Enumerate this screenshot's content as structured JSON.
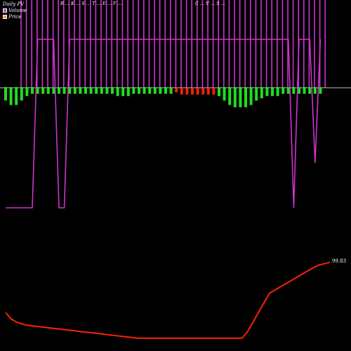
{
  "legend": {
    "title": "Daily PV",
    "volume_label": "Volume",
    "price_label": "Price",
    "volume_color": "#cc33cc",
    "price_color": "#ff9900"
  },
  "header": {
    "left": "B ... K ... S ... T ... E ... F ...",
    "right": "C ... V ... S ..."
  },
  "colors": {
    "background": "#000000",
    "volume_line": "#cc33cc",
    "price_line": "#ff2200",
    "bar_up": "#22dd22",
    "bar_down": "#ee2200",
    "baseline": "#ffffff"
  },
  "chart_data": {
    "type": "bar",
    "last_price_label": "99.83",
    "volume_spikes": [
      1,
      1,
      1,
      1,
      1,
      1,
      1,
      1,
      1,
      1,
      1,
      1,
      1,
      1,
      1,
      1,
      1,
      1,
      1,
      1,
      1,
      1,
      1,
      1,
      1,
      1,
      1,
      1,
      1,
      1,
      1,
      1,
      1,
      1,
      1,
      1,
      1,
      1,
      1,
      1,
      1,
      1,
      1,
      1,
      1,
      1,
      1,
      1,
      1,
      1,
      1,
      1,
      1,
      1,
      1,
      1,
      1,
      1,
      1,
      1
    ],
    "histogram": [
      -0.6,
      -0.8,
      -0.8,
      -0.6,
      -0.4,
      -0.3,
      -0.3,
      -0.3,
      -0.3,
      -0.3,
      -0.3,
      -0.3,
      -0.3,
      -0.3,
      -0.3,
      -0.3,
      -0.3,
      -0.3,
      -0.3,
      -0.3,
      -0.3,
      -0.4,
      -0.4,
      -0.4,
      -0.3,
      -0.3,
      -0.3,
      -0.3,
      -0.3,
      -0.3,
      -0.3,
      -0.3,
      0.2,
      0.3,
      0.3,
      0.3,
      0.3,
      0.3,
      0.3,
      0.3,
      -0.4,
      -0.6,
      -0.8,
      -0.9,
      -0.9,
      -0.9,
      -0.8,
      -0.6,
      -0.5,
      -0.4,
      -0.4,
      -0.4,
      -0.3,
      -0.3,
      -0.3,
      -0.3,
      -0.3,
      -0.3,
      -0.3,
      -0.3
    ],
    "volume_line": [
      0.2,
      0.2,
      0.2,
      0.2,
      0.2,
      0.2,
      0.95,
      0.95,
      0.95,
      0.95,
      0.2,
      0.2,
      0.95,
      0.95,
      0.95,
      0.95,
      0.95,
      0.95,
      0.95,
      0.95,
      0.95,
      0.95,
      0.95,
      0.95,
      0.95,
      0.95,
      0.95,
      0.95,
      0.95,
      0.95,
      0.95,
      0.95,
      0.95,
      0.95,
      0.95,
      0.95,
      0.95,
      0.95,
      0.95,
      0.95,
      0.95,
      0.95,
      0.95,
      0.95,
      0.95,
      0.95,
      0.95,
      0.95,
      0.95,
      0.95,
      0.95,
      0.95,
      0.95,
      0.95,
      0.2,
      0.95,
      0.95,
      0.95,
      0.4,
      0.95
    ],
    "price_line": [
      92.0,
      91.0,
      90.5,
      90.2,
      90.0,
      89.9,
      89.8,
      89.7,
      89.6,
      89.5,
      89.4,
      89.3,
      89.2,
      89.1,
      89.0,
      88.9,
      88.8,
      88.7,
      88.6,
      88.5,
      88.4,
      88.3,
      88.2,
      88.1,
      88.0,
      88.0,
      88.0,
      88.0,
      88.0,
      88.0,
      88.0,
      88.0,
      88.0,
      88.0,
      88.0,
      88.0,
      88.0,
      88.0,
      88.0,
      88.0,
      88.0,
      88.0,
      88.0,
      88.0,
      89.0,
      90.5,
      92.0,
      93.5,
      95.0,
      95.5,
      96.0,
      96.5,
      97.0,
      97.5,
      98.0,
      98.5,
      99.0,
      99.4,
      99.6,
      99.83
    ]
  }
}
